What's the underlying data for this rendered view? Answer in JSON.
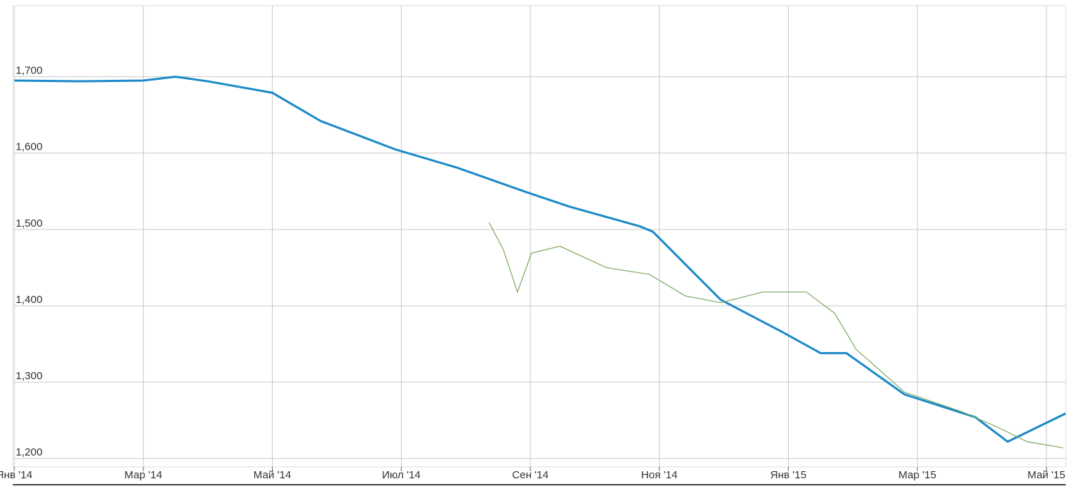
{
  "chart_data": {
    "type": "line",
    "x_unit_note_free": null,
    "xlim": [
      0,
      16.3
    ],
    "ylim": [
      1189,
      1793
    ],
    "xticks": [
      {
        "value": 0,
        "label": "Янв '14"
      },
      {
        "value": 2,
        "label": "Мар '14"
      },
      {
        "value": 4,
        "label": "Май '14"
      },
      {
        "value": 6,
        "label": "Июл '14"
      },
      {
        "value": 8,
        "label": "Сен '14"
      },
      {
        "value": 10,
        "label": "Ноя '14"
      },
      {
        "value": 12,
        "label": "Янв '15"
      },
      {
        "value": 14,
        "label": "Мар '15"
      },
      {
        "value": 16,
        "label": "Май '15"
      }
    ],
    "yticks": [
      {
        "value": 1200,
        "label": "1,200"
      },
      {
        "value": 1300,
        "label": "1,300"
      },
      {
        "value": 1400,
        "label": "1,400"
      },
      {
        "value": 1500,
        "label": "1,500"
      },
      {
        "value": 1600,
        "label": "1,600"
      },
      {
        "value": 1700,
        "label": "1,700"
      }
    ],
    "grid": true,
    "series": [
      {
        "color": "#1b8ac8",
        "x": [
          0,
          1,
          2,
          2.5,
          3,
          4,
          4.75,
          5.9,
          6.86,
          7.9,
          8.6,
          9.7,
          9.9,
          10.95,
          11.9,
          12.5,
          12.9,
          13.8,
          14.9,
          15.4,
          16.3
        ],
        "values": [
          1695,
          1694,
          1695,
          1700,
          1694,
          1679,
          1642,
          1605,
          1581,
          1550,
          1530,
          1504,
          1497,
          1408,
          1366,
          1338,
          1338,
          1284,
          1254,
          1222,
          1259
        ]
      },
      {
        "color": "#7aa860",
        "x": [
          7.36,
          7.58,
          7.8,
          8.02,
          8.46,
          9.18,
          9.85,
          10.4,
          10.95,
          11.6,
          12.28,
          12.72,
          13.05,
          13.8,
          14.7,
          15.27,
          15.7,
          16.26
        ],
        "values": [
          1509,
          1474,
          1418,
          1469,
          1478,
          1450,
          1441,
          1413,
          1404,
          1418,
          1418,
          1390,
          1343,
          1287,
          1261,
          1240,
          1222,
          1214
        ]
      }
    ]
  }
}
